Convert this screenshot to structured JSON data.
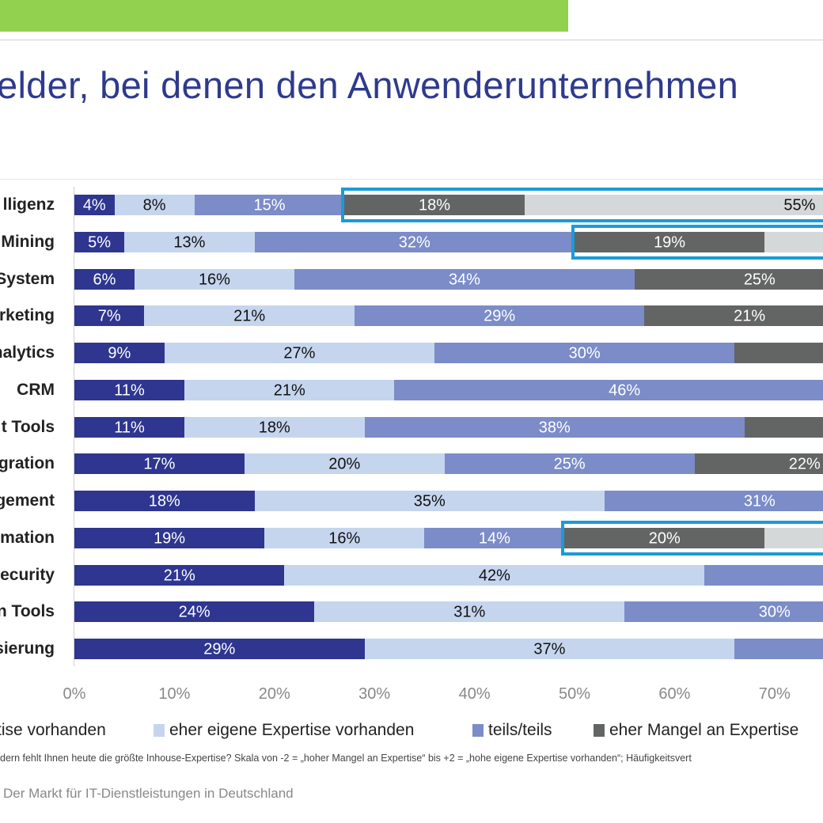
{
  "header": {
    "title": "elder, bei denen den Anwenderunternehmen"
  },
  "colors": {
    "topbar": "#92d050",
    "title": "#2e3a8c",
    "highlight": "#1a9bd7"
  },
  "chart_data": {
    "type": "bar",
    "orientation": "horizontal-stacked-100",
    "categories": [
      "lligenz",
      "Mining",
      "System",
      "rketing",
      "nalytics",
      "CRM",
      "t Tools",
      "gration",
      "gement",
      "mation",
      "ecurity",
      "n Tools",
      "sierung"
    ],
    "series": [
      {
        "name": "tise vorhanden",
        "color": "#2e3690",
        "label_color": "#ffffff",
        "values": [
          4,
          5,
          6,
          7,
          9,
          11,
          11,
          17,
          18,
          19,
          21,
          24,
          29
        ]
      },
      {
        "name": "eher eigene Expertise vorhanden",
        "color": "#c5d5ee",
        "label_color": "#111111",
        "values": [
          8,
          13,
          16,
          21,
          27,
          21,
          18,
          20,
          35,
          16,
          42,
          31,
          37
        ]
      },
      {
        "name": "teils/teils",
        "color": "#7b8cc8",
        "label_color": "#ffffff",
        "values": [
          15,
          32,
          34,
          29,
          30,
          46,
          38,
          25,
          31,
          14,
          null,
          30,
          null
        ]
      },
      {
        "name": "eher Mangel an Expertise",
        "color": "#636565",
        "label_color": "#ffffff",
        "values": [
          18,
          19,
          25,
          21,
          null,
          null,
          null,
          22,
          null,
          20,
          null,
          null,
          null
        ]
      },
      {
        "name": "",
        "color": "#d5d8d8",
        "label_color": "#111111",
        "values": [
          55,
          null,
          null,
          null,
          null,
          null,
          null,
          null,
          null,
          null,
          null,
          null,
          null
        ]
      }
    ],
    "highlighted": [
      {
        "category": "lligenz",
        "from_series": 3
      },
      {
        "category": "Mining",
        "from_series": 3
      },
      {
        "category": "mation",
        "from_series": 3
      }
    ],
    "x_ticks": [
      "0%",
      "10%",
      "20%",
      "30%",
      "40%",
      "50%",
      "60%",
      "70%"
    ],
    "xlim": [
      0,
      100
    ],
    "legend_position": "bottom",
    "grid": false
  },
  "legend": {
    "items": [
      "tise vorhanden",
      "eher eigene Expertise vorhanden",
      "teils/teils",
      "eher Mangel an Expertise"
    ]
  },
  "footnote": "dern fehlt Ihnen heute die größte Inhouse-Expertise? Skala von -2 = „hoher Mangel an Expertise“ bis +2 = „hohe eigene Expertise vorhanden“; Häufigkeitsvert",
  "source": "Der Markt für IT-Dienstleistungen in Deutschland"
}
